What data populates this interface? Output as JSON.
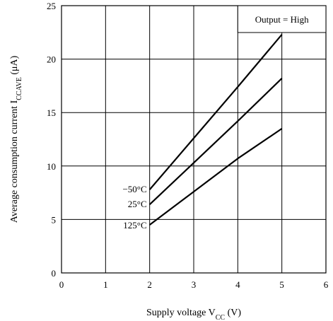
{
  "chart_data": {
    "type": "line",
    "xlabel": {
      "text": "Supply voltage  V",
      "sub": "CC",
      "tail": "  (V)"
    },
    "ylabel": {
      "text": "Average consumption current  I",
      "sub": "CCAVE",
      "tail": "  (μA)"
    },
    "xlim": [
      0,
      6
    ],
    "ylim": [
      0,
      25
    ],
    "xticks": [
      "0",
      "1",
      "2",
      "3",
      "4",
      "5",
      "6"
    ],
    "yticks": [
      "0",
      "5",
      "10",
      "15",
      "20",
      "25"
    ],
    "grid": true,
    "legend_box": "Output = High",
    "series": [
      {
        "name": "−50°C",
        "x": [
          2,
          3,
          4,
          5
        ],
        "y": [
          7.8,
          12.6,
          17.4,
          22.3
        ]
      },
      {
        "name": "25°C",
        "x": [
          2,
          3,
          4,
          5
        ],
        "y": [
          6.4,
          10.3,
          14.2,
          18.2
        ]
      },
      {
        "name": "125°C",
        "x": [
          2,
          3,
          4,
          5
        ],
        "y": [
          4.5,
          7.6,
          10.7,
          13.5
        ]
      }
    ]
  }
}
